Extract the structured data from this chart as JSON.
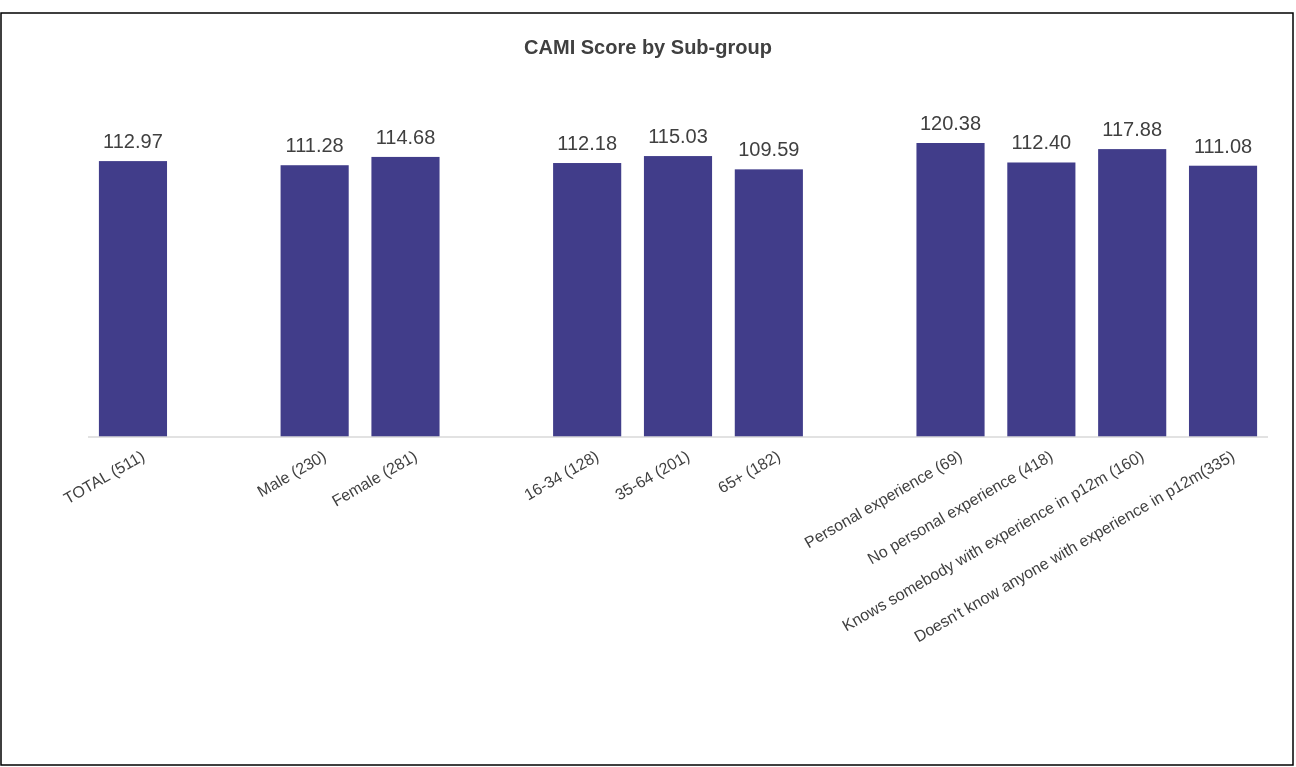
{
  "chart_data": {
    "type": "bar",
    "title": "CAMI Score by Sub-group",
    "categories": [
      "TOTAL (511)",
      null,
      "Male (230)",
      "Female (281)",
      null,
      "16-34 (128)",
      "35-64 (201)",
      "65+ (182)",
      null,
      "Personal experience (69)",
      "No personal experience (418)",
      "Knows somebody with experience in p12m (160)",
      "Doesn't know anyone with experience in p12m(335)"
    ],
    "values": [
      112.97,
      null,
      111.28,
      114.68,
      null,
      112.18,
      115.03,
      109.59,
      null,
      120.38,
      112.4,
      117.88,
      111.08
    ],
    "value_labels": [
      "112.97",
      null,
      "111.28",
      "114.68",
      null,
      "112.18",
      "115.03",
      "109.59",
      null,
      "120.38",
      "112.40",
      "117.88",
      "111.08"
    ],
    "color": "#413d8a"
  }
}
